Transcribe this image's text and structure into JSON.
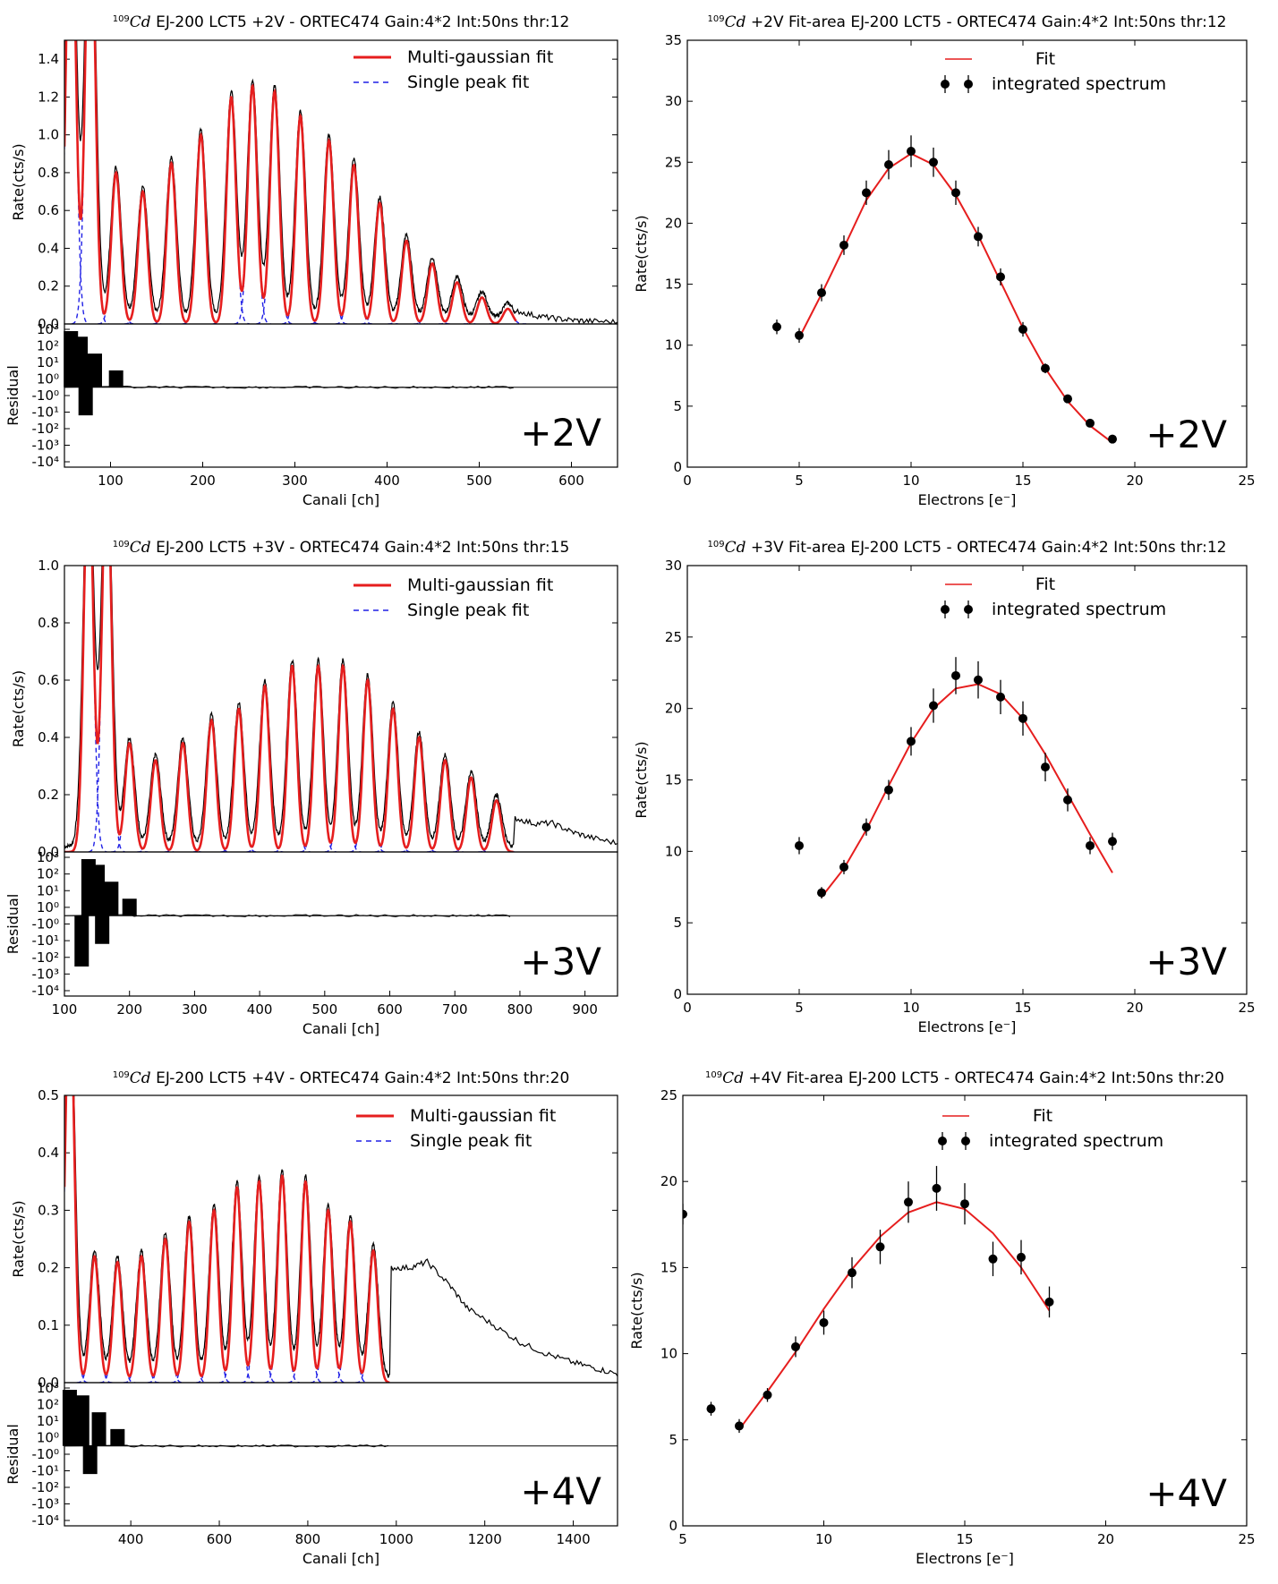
{
  "figure": {
    "residual_ylabel": "Residual",
    "residual_ticks": [
      "10³",
      "10²",
      "10¹",
      "10⁰",
      "-10⁰",
      "-10¹",
      "-10²",
      "-10³",
      "-10⁴"
    ]
  },
  "chart_data": [
    {
      "id": "spec2",
      "type": "line",
      "title_parts": {
        "sup": "109",
        "elem": "Cd",
        "rest": " EJ-200 LCT5 +2V - ORTEC474 Gain:4*2 Int:50ns thr:12"
      },
      "xlabel": "Canali [ch]",
      "ylabel": "Rate(cts/s)",
      "xlim": [
        50,
        650
      ],
      "ylim": [
        0,
        1.5
      ],
      "xticks": [
        100,
        200,
        300,
        400,
        500,
        600
      ],
      "yticks": [
        0.0,
        0.2,
        0.4,
        0.6,
        0.8,
        1.0,
        1.2,
        1.4
      ],
      "yticks_fmt": 1,
      "legend": [
        "Multi-gaussian fit",
        "Single peak fit"
      ],
      "label": "+2V",
      "peaks": {
        "centers": [
          57,
          78,
          106,
          135,
          166,
          198,
          231,
          254,
          278,
          306,
          337,
          364,
          392,
          421,
          449,
          476,
          503,
          531
        ],
        "amps": [
          2.5,
          2.5,
          0.8,
          0.7,
          0.85,
          1.0,
          1.2,
          1.26,
          1.23,
          1.1,
          0.97,
          0.84,
          0.64,
          0.44,
          0.32,
          0.22,
          0.14,
          0.08
        ],
        "sigma": 5,
        "fit_end": 540
      },
      "tail": {
        "x": [
          540,
          560,
          580,
          600,
          620,
          650
        ],
        "y": [
          0.07,
          0.045,
          0.03,
          0.02,
          0.015,
          0.01
        ]
      }
    },
    {
      "id": "fit2",
      "type": "scatter",
      "title_parts": {
        "sup": "109",
        "elem": "Cd",
        "rest": " +2V Fit-area EJ-200 LCT5 - ORTEC474 Gain:4*2 Int:50ns thr:12"
      },
      "xlabel": "Electrons [e⁻]",
      "ylabel": "Rate(cts/s)",
      "xlim": [
        0,
        25
      ],
      "ylim": [
        0,
        35
      ],
      "xticks": [
        0,
        5,
        10,
        15,
        20,
        25
      ],
      "yticks": [
        0,
        5,
        10,
        15,
        20,
        25,
        30,
        35
      ],
      "yticks_fmt": 0,
      "legend": [
        "Fit",
        "integrated spectrum"
      ],
      "label": "+2V",
      "points": {
        "x": [
          4,
          5,
          6,
          7,
          8,
          9,
          10,
          11,
          12,
          13,
          14,
          15,
          16,
          17,
          18,
          19
        ],
        "y": [
          11.5,
          10.8,
          14.3,
          18.2,
          22.5,
          24.8,
          25.9,
          25.0,
          22.5,
          18.9,
          15.6,
          11.3,
          8.1,
          5.6,
          3.6,
          2.3
        ],
        "err": [
          0.6,
          0.6,
          0.7,
          0.8,
          1.0,
          1.2,
          1.3,
          1.2,
          1.0,
          0.8,
          0.7,
          0.6,
          0.4,
          0.3,
          0.2,
          0.2
        ]
      },
      "fit": {
        "x": [
          5,
          6,
          7,
          8,
          9,
          10,
          11,
          12,
          13,
          14,
          15,
          16,
          17,
          18,
          19
        ],
        "y": [
          10.6,
          14.2,
          18.0,
          21.9,
          24.5,
          25.7,
          24.8,
          22.3,
          19.0,
          15.2,
          11.4,
          8.1,
          5.4,
          3.4,
          2.0
        ]
      }
    },
    {
      "id": "spec3",
      "type": "line",
      "title_parts": {
        "sup": "109",
        "elem": "Cd",
        "rest": " EJ-200 LCT5 +3V - ORTEC474 Gain:4*2 Int:50ns thr:15"
      },
      "xlabel": "Canali [ch]",
      "ylabel": "Rate(cts/s)",
      "xlim": [
        100,
        950
      ],
      "ylim": [
        0,
        1.0
      ],
      "xticks": [
        100,
        200,
        300,
        400,
        500,
        600,
        700,
        800,
        900
      ],
      "yticks": [
        0.0,
        0.2,
        0.4,
        0.6,
        0.8,
        1.0
      ],
      "yticks_fmt": 1,
      "legend": [
        "Multi-gaussian fit",
        "Single peak fit"
      ],
      "label": "+3V",
      "peaks": {
        "centers": [
          137,
          165,
          200,
          240,
          282,
          326,
          368,
          408,
          450,
          490,
          528,
          566,
          605,
          645,
          685,
          725,
          764
        ],
        "amps": [
          1.4,
          1.4,
          0.38,
          0.32,
          0.38,
          0.46,
          0.5,
          0.58,
          0.65,
          0.65,
          0.65,
          0.6,
          0.5,
          0.4,
          0.32,
          0.26,
          0.18
        ],
        "sigma": 7,
        "fit_end": 790
      },
      "tail": {
        "x": [
          790,
          820,
          850,
          880,
          910,
          950
        ],
        "y": [
          0.12,
          0.1,
          0.1,
          0.07,
          0.05,
          0.03
        ]
      }
    },
    {
      "id": "fit3",
      "type": "scatter",
      "title_parts": {
        "sup": "109",
        "elem": "Cd",
        "rest": " +3V Fit-area EJ-200 LCT5 - ORTEC474 Gain:4*2 Int:50ns thr:12"
      },
      "xlabel": "Electrons [e⁻]",
      "ylabel": "Rate(cts/s)",
      "xlim": [
        0,
        25
      ],
      "ylim": [
        0,
        30
      ],
      "xticks": [
        0,
        5,
        10,
        15,
        20,
        25
      ],
      "yticks": [
        0,
        5,
        10,
        15,
        20,
        25,
        30
      ],
      "yticks_fmt": 0,
      "legend": [
        "Fit",
        "integrated spectrum"
      ],
      "label": "+3V",
      "points": {
        "x": [
          5,
          6,
          7,
          8,
          9,
          10,
          11,
          12,
          13,
          14,
          15,
          16,
          17,
          18,
          19
        ],
        "y": [
          10.4,
          7.1,
          8.9,
          11.7,
          14.3,
          17.7,
          20.2,
          22.3,
          22.0,
          20.8,
          19.3,
          15.9,
          13.6,
          10.4,
          10.7
        ],
        "err": [
          0.6,
          0.4,
          0.5,
          0.6,
          0.7,
          1.0,
          1.2,
          1.3,
          1.3,
          1.2,
          1.2,
          1.0,
          0.8,
          0.6,
          0.6
        ]
      },
      "fit": {
        "x": [
          6,
          7,
          8,
          9,
          10,
          11,
          12,
          13,
          14,
          15,
          16,
          17,
          18,
          19
        ],
        "y": [
          6.8,
          8.8,
          11.5,
          14.6,
          17.6,
          20.0,
          21.4,
          21.7,
          21.0,
          19.3,
          16.8,
          14.0,
          11.2,
          8.5
        ]
      }
    },
    {
      "id": "spec4",
      "type": "line",
      "title_parts": {
        "sup": "109",
        "elem": "Cd",
        "rest": " EJ-200 LCT5 +4V - ORTEC474 Gain:4*2 Int:50ns thr:20"
      },
      "xlabel": "Canali [ch]",
      "ylabel": "Rate(cts/s)",
      "xlim": [
        250,
        1500
      ],
      "ylim": [
        0,
        0.5
      ],
      "xticks": [
        400,
        600,
        800,
        1000,
        1200,
        1400
      ],
      "yticks": [
        0.0,
        0.1,
        0.2,
        0.3,
        0.4,
        0.5
      ],
      "yticks_fmt": 1,
      "legend": [
        "Multi-gaussian fit",
        "Single peak fit"
      ],
      "label": "+4V",
      "peaks": {
        "centers": [
          262,
          318,
          370,
          424,
          478,
          532,
          588,
          640,
          690,
          742,
          795,
          846,
          896,
          948
        ],
        "amps": [
          0.7,
          0.22,
          0.21,
          0.22,
          0.25,
          0.28,
          0.3,
          0.34,
          0.35,
          0.36,
          0.35,
          0.3,
          0.28,
          0.23
        ],
        "sigma": 10,
        "fit_end": 985
      },
      "tail": {
        "x": [
          985,
          1030,
          1070,
          1120,
          1160,
          1220,
          1280,
          1340,
          1400,
          1450,
          1500
        ],
        "y": [
          0.2,
          0.2,
          0.21,
          0.17,
          0.13,
          0.1,
          0.07,
          0.05,
          0.035,
          0.025,
          0.015
        ]
      }
    },
    {
      "id": "fit4",
      "type": "scatter",
      "title_parts": {
        "sup": "109",
        "elem": "Cd",
        "rest": " +4V Fit-area EJ-200 LCT5 - ORTEC474 Gain:4*2 Int:50ns thr:20"
      },
      "xlabel": "Electrons [e⁻]",
      "ylabel": "Rate(cts/s)",
      "xlim": [
        5,
        25
      ],
      "ylim": [
        0,
        25
      ],
      "xticks": [
        5,
        10,
        15,
        20,
        25
      ],
      "yticks": [
        0,
        5,
        10,
        15,
        20,
        25
      ],
      "yticks_fmt": 0,
      "legend": [
        "Fit",
        "integrated spectrum"
      ],
      "label": "+4V",
      "points": {
        "x": [
          5,
          6,
          7,
          8,
          9,
          10,
          11,
          12,
          13,
          14,
          15,
          16,
          17,
          18
        ],
        "y": [
          18.1,
          6.8,
          5.8,
          7.6,
          10.4,
          11.8,
          14.7,
          16.2,
          18.8,
          19.6,
          18.7,
          15.5,
          15.6,
          13.0
        ],
        "err": [
          0.6,
          0.4,
          0.4,
          0.4,
          0.6,
          0.7,
          0.9,
          1.0,
          1.2,
          1.3,
          1.2,
          1.0,
          1.0,
          0.9
        ]
      },
      "fit": {
        "x": [
          7,
          8,
          9,
          10,
          11,
          12,
          13,
          14,
          15,
          16,
          17,
          18
        ],
        "y": [
          5.6,
          7.8,
          10.1,
          12.6,
          14.9,
          16.8,
          18.2,
          18.8,
          18.4,
          17.0,
          15.0,
          12.5
        ]
      }
    }
  ]
}
